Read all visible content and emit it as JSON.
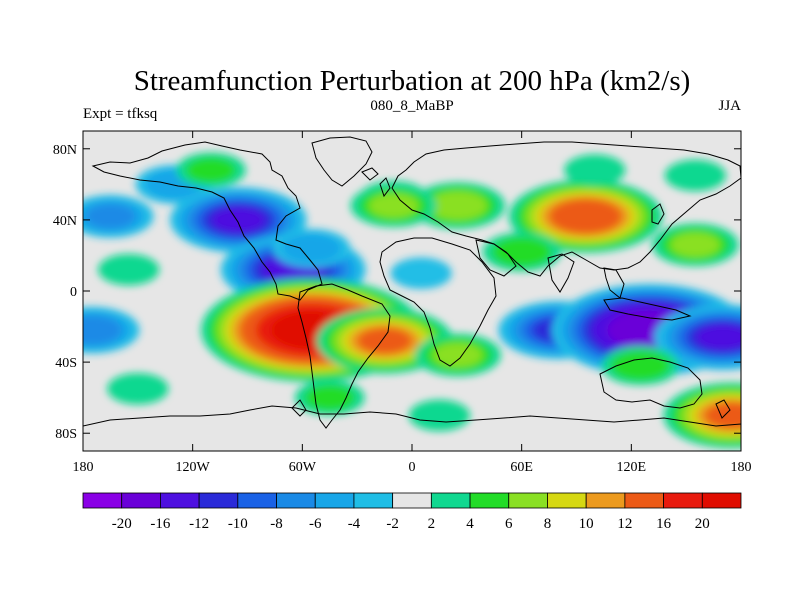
{
  "chart_data": {
    "type": "heatmap",
    "title": "Streamfunction Perturbation at 200 hPa (km2/s)",
    "left_label": "Expt = tfksq",
    "center_label": "080_8_MaBP",
    "right_label": "JJA",
    "x_ticks": [
      {
        "value": -180,
        "label": "180"
      },
      {
        "value": -120,
        "label": "120W"
      },
      {
        "value": -60,
        "label": "60W"
      },
      {
        "value": 0,
        "label": "0"
      },
      {
        "value": 60,
        "label": "60E"
      },
      {
        "value": 120,
        "label": "120E"
      },
      {
        "value": 180,
        "label": "180"
      }
    ],
    "y_ticks": [
      {
        "value": 80,
        "label": "80N"
      },
      {
        "value": 40,
        "label": "40N"
      },
      {
        "value": 0,
        "label": "0"
      },
      {
        "value": -40,
        "label": "40S"
      },
      {
        "value": -80,
        "label": "80S"
      }
    ],
    "xlim": [
      -180,
      180
    ],
    "ylim": [
      -90,
      90
    ],
    "contour_levels": [
      -20,
      -16,
      -12,
      -10,
      -8,
      -6,
      -4,
      -2,
      2,
      4,
      6,
      8,
      10,
      12,
      16,
      20
    ],
    "colorbar_labels": [
      "-20",
      "-16",
      "-12",
      "-10",
      "-8",
      "-6",
      "-4",
      "-2",
      "2",
      "4",
      "6",
      "8",
      "10",
      "12",
      "16",
      "20"
    ],
    "colors": [
      "#8a00e6",
      "#6a00d8",
      "#4e10e0",
      "#2a2ad8",
      "#1a62e6",
      "#1a8ae6",
      "#18a6e8",
      "#20bee6",
      "#e6e6e6",
      "#10d890",
      "#22dc28",
      "#8ae024",
      "#d6d812",
      "#ec9a1e",
      "#ec5a16",
      "#e81a0e",
      "#e00c00"
    ],
    "anomaly_features": [
      {
        "lon": -130,
        "lat": 60,
        "value": -5
      },
      {
        "lon": -95,
        "lat": 40,
        "value": -12
      },
      {
        "lon": -165,
        "lat": 42,
        "value": -6
      },
      {
        "lon": -65,
        "lat": 12,
        "value": -13
      },
      {
        "lon": -55,
        "lat": 24,
        "value": -5
      },
      {
        "lon": -155,
        "lat": 12,
        "value": 3
      },
      {
        "lon": -175,
        "lat": -22,
        "value": -7
      },
      {
        "lon": -55,
        "lat": -22,
        "value": 22
      },
      {
        "lon": -15,
        "lat": -28,
        "value": 12
      },
      {
        "lon": 25,
        "lat": -36,
        "value": 6
      },
      {
        "lon": -150,
        "lat": -55,
        "value": 3
      },
      {
        "lon": -45,
        "lat": -60,
        "value": 4
      },
      {
        "lon": 15,
        "lat": -70,
        "value": 3
      },
      {
        "lon": 95,
        "lat": 42,
        "value": 14
      },
      {
        "lon": 60,
        "lat": 22,
        "value": 5
      },
      {
        "lon": 155,
        "lat": 26,
        "value": 6
      },
      {
        "lon": 25,
        "lat": 48,
        "value": 7
      },
      {
        "lon": -10,
        "lat": 52,
        "value": 4
      },
      {
        "lon": 100,
        "lat": 68,
        "value": 3
      },
      {
        "lon": 155,
        "lat": 65,
        "value": 3
      },
      {
        "lon": -110,
        "lat": 68,
        "value": 4
      },
      {
        "lon": 80,
        "lat": -22,
        "value": -10
      },
      {
        "lon": 130,
        "lat": -22,
        "value": -19
      },
      {
        "lon": 170,
        "lat": -26,
        "value": -12
      },
      {
        "lon": 125,
        "lat": -42,
        "value": 5
      },
      {
        "lon": 175,
        "lat": -70,
        "value": 12
      },
      {
        "lon": 5,
        "lat": 10,
        "value": -3
      },
      {
        "lon": -10,
        "lat": 48,
        "value": 6
      }
    ]
  }
}
